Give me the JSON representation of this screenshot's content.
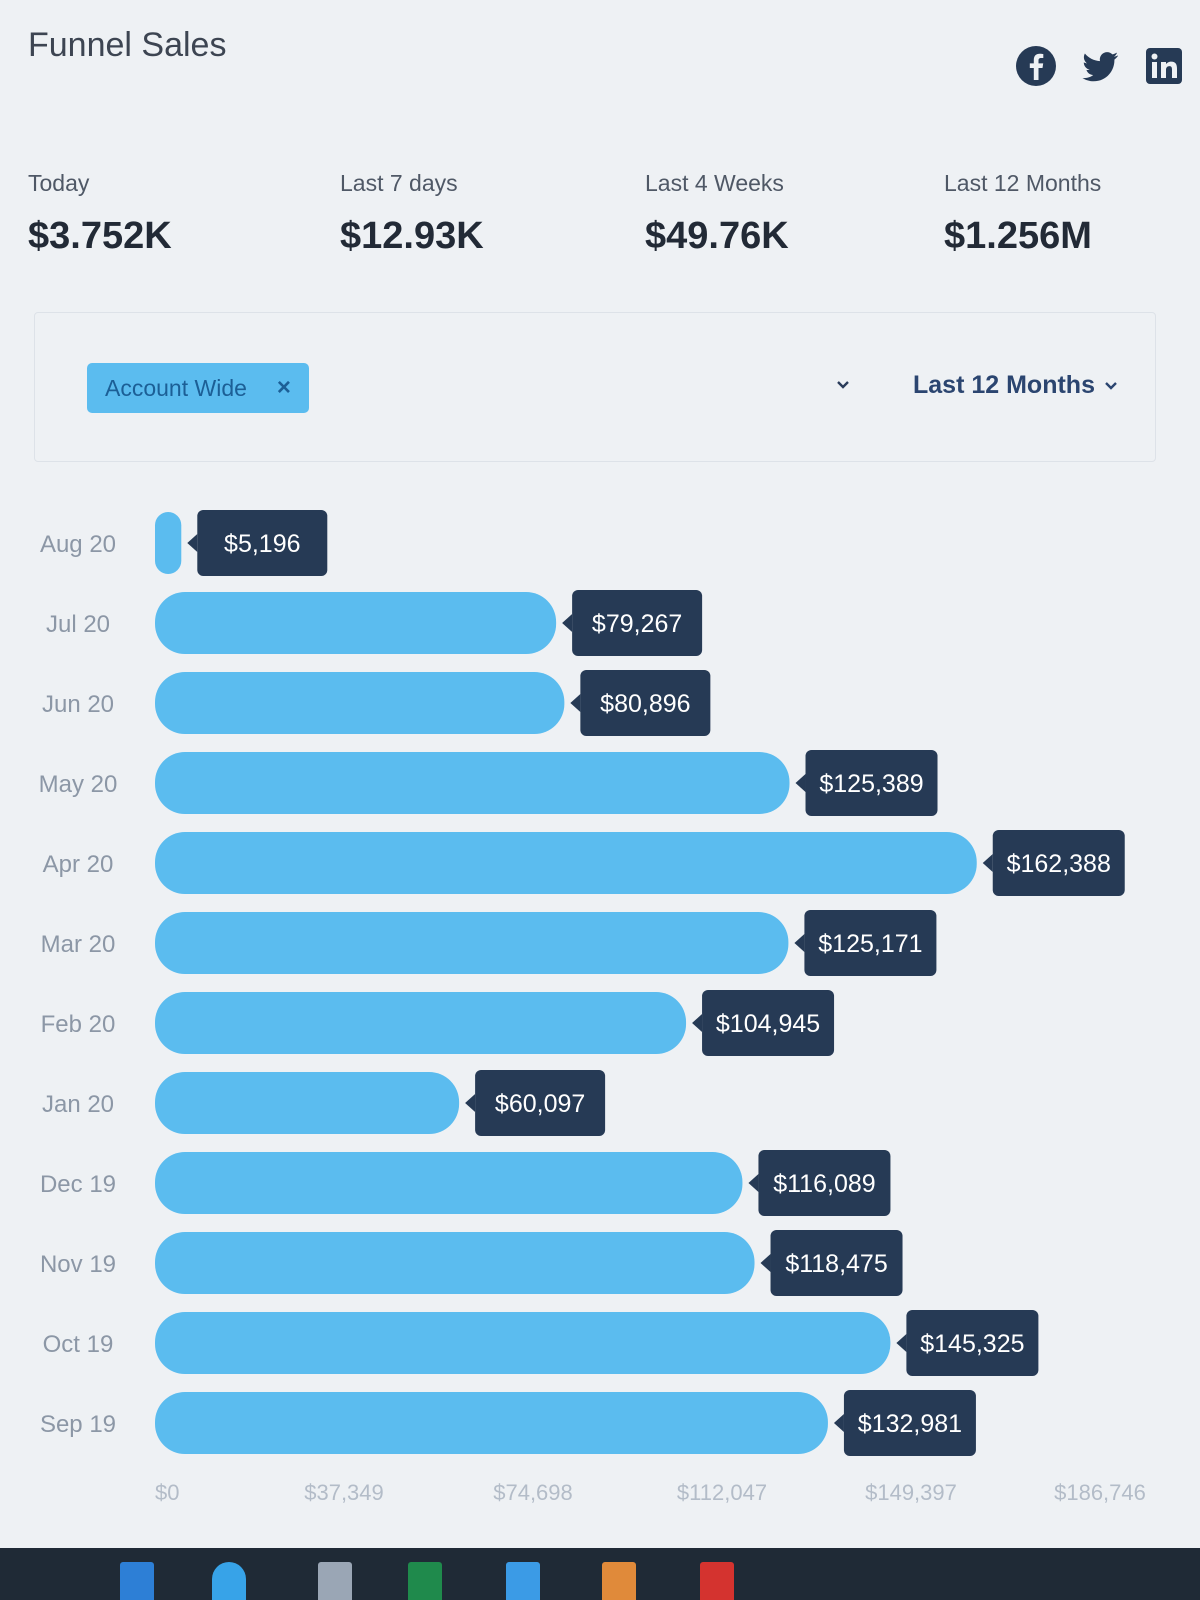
{
  "header": {
    "title": "Funnel Sales"
  },
  "social": [
    "facebook-icon",
    "twitter-icon",
    "linkedin-icon"
  ],
  "stats": [
    {
      "label": "Today",
      "value": "$3.752K"
    },
    {
      "label": "Last 7 days",
      "value": "$12.93K"
    },
    {
      "label": "Last 4 Weeks",
      "value": "$49.76K"
    },
    {
      "label": "Last 12 Months",
      "value": "$1.256M"
    }
  ],
  "filters": {
    "tag_label": "Account Wide",
    "tag_close": "×",
    "period_label": "Last 12 Months"
  },
  "chart_data": {
    "type": "bar",
    "orientation": "horizontal",
    "categories": [
      "Aug 20",
      "Jul 20",
      "Jun 20",
      "May 20",
      "Apr 20",
      "Mar 20",
      "Feb 20",
      "Jan 20",
      "Dec 19",
      "Nov 19",
      "Oct 19",
      "Sep 19"
    ],
    "values": [
      5196,
      79267,
      80896,
      125389,
      162388,
      125171,
      104945,
      60097,
      116089,
      118475,
      145325,
      132981
    ],
    "value_labels": [
      "$5,196",
      "$79,267",
      "$80,896",
      "$125,389",
      "$162,388",
      "$125,171",
      "$104,945",
      "$60,097",
      "$116,089",
      "$118,475",
      "$145,325",
      "$132,981"
    ],
    "x_ticks": [
      "$0",
      "$37,349",
      "$74,698",
      "$112,047",
      "$149,397",
      "$186,746"
    ],
    "xlim": [
      0,
      186746
    ],
    "bar_color": "#5bbcef",
    "label_bg": "#263a55",
    "grid": false,
    "legend": "none"
  },
  "taskbar": {
    "icons": [
      "windows-icon",
      "edge-icon",
      "chrome-icon",
      "files-icon",
      "excel-icon",
      "photos-icon",
      "office-icon",
      "acrobat-icon"
    ]
  },
  "colors": {
    "accent": "#5bbcef",
    "dark_label": "#263a55",
    "taskbar": "#1f2a36"
  }
}
